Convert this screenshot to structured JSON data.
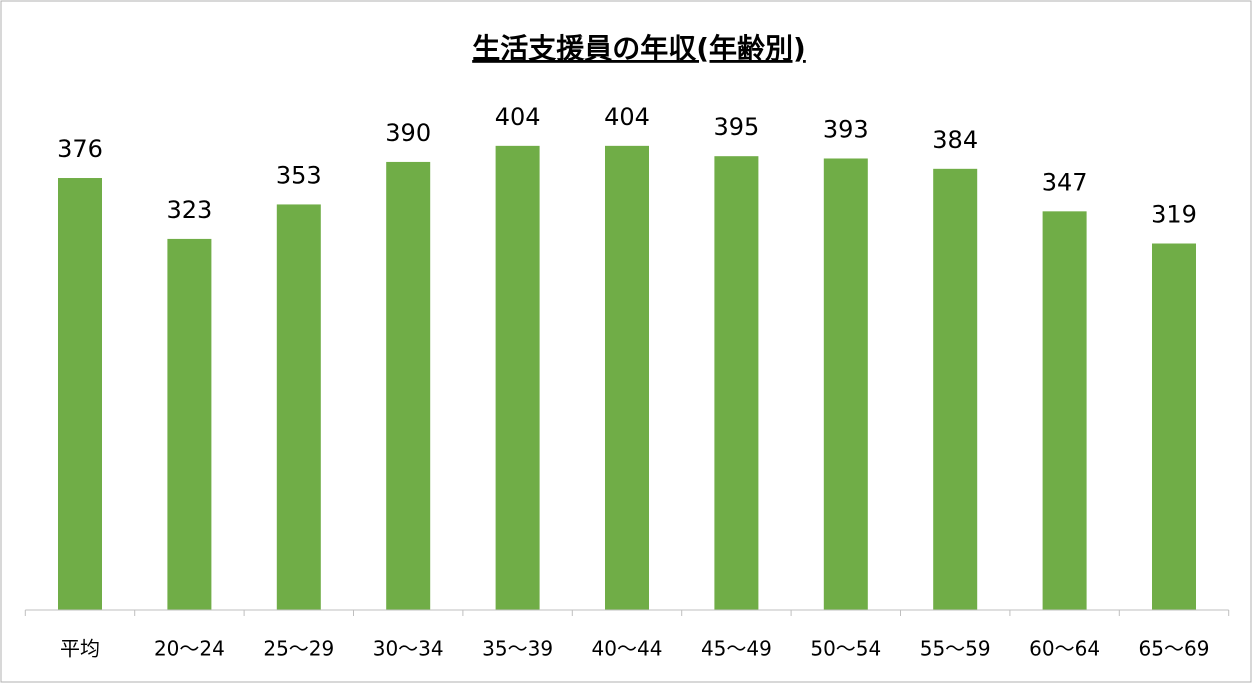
{
  "chart_data": {
    "type": "bar",
    "title": "生活支援員の年収(年齢別)",
    "categories": [
      "平均",
      "20〜24",
      "25〜29",
      "30〜34",
      "35〜39",
      "40〜44",
      "45〜49",
      "50〜54",
      "55〜59",
      "60〜64",
      "65〜69"
    ],
    "values": [
      376,
      323,
      353,
      390,
      404,
      404,
      395,
      393,
      384,
      347,
      319
    ],
    "color": "#70ad47",
    "ylim": [
      0,
      450
    ]
  }
}
